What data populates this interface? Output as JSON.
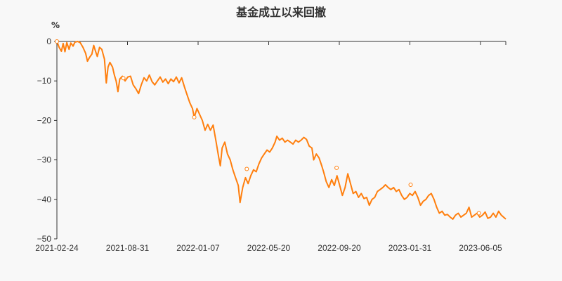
{
  "chart_data": {
    "type": "line",
    "title": "基金成立以来回撤",
    "ylabel": "%",
    "xlabel": "",
    "ylim": [
      -50,
      0
    ],
    "yticks": [
      0,
      -10,
      -20,
      -30,
      -40,
      -50
    ],
    "ytick_labels": [
      "0",
      "−10",
      "−20",
      "−30",
      "−40",
      "−50"
    ],
    "xtick_labels": [
      "2021-02-24",
      "2021-08-31",
      "2022-01-07",
      "2022-05-20",
      "2022-09-20",
      "2023-01-31",
      "2023-06-05"
    ],
    "grid": false,
    "legend": null,
    "line_color": "#ff7f0e",
    "series": [
      {
        "name": "回撤",
        "points": [
          [
            0.0,
            0.0
          ],
          [
            0.005,
            -1.5
          ],
          [
            0.01,
            -2.5
          ],
          [
            0.014,
            -0.5
          ],
          [
            0.018,
            -2.6
          ],
          [
            0.022,
            -0.3
          ],
          [
            0.027,
            -2.0
          ],
          [
            0.031,
            -0.4
          ],
          [
            0.036,
            -1.2
          ],
          [
            0.04,
            -0.2
          ],
          [
            0.046,
            0.0
          ],
          [
            0.052,
            -0.3
          ],
          [
            0.058,
            -1.5
          ],
          [
            0.064,
            -3.0
          ],
          [
            0.068,
            -5.0
          ],
          [
            0.073,
            -4.0
          ],
          [
            0.078,
            -3.2
          ],
          [
            0.082,
            -1.0
          ],
          [
            0.086,
            -2.5
          ],
          [
            0.09,
            -3.8
          ],
          [
            0.095,
            -1.5
          ],
          [
            0.1,
            -2.0
          ],
          [
            0.106,
            -4.5
          ],
          [
            0.11,
            -10.5
          ],
          [
            0.114,
            -6.5
          ],
          [
            0.118,
            -5.3
          ],
          [
            0.124,
            -6.5
          ],
          [
            0.128,
            -8.5
          ],
          [
            0.132,
            -10.0
          ],
          [
            0.136,
            -12.7
          ],
          [
            0.14,
            -9.5
          ],
          [
            0.146,
            -8.8
          ],
          [
            0.152,
            -10.0
          ],
          [
            0.158,
            -9.0
          ],
          [
            0.164,
            -8.8
          ],
          [
            0.17,
            -11.0
          ],
          [
            0.176,
            -12.0
          ],
          [
            0.182,
            -13.2
          ],
          [
            0.188,
            -11.0
          ],
          [
            0.194,
            -9.2
          ],
          [
            0.2,
            -10.0
          ],
          [
            0.206,
            -8.5
          ],
          [
            0.212,
            -10.2
          ],
          [
            0.218,
            -11.0
          ],
          [
            0.224,
            -10.0
          ],
          [
            0.23,
            -9.0
          ],
          [
            0.236,
            -10.3
          ],
          [
            0.242,
            -9.5
          ],
          [
            0.248,
            -10.7
          ],
          [
            0.254,
            -9.5
          ],
          [
            0.26,
            -10.2
          ],
          [
            0.266,
            -9.0
          ],
          [
            0.272,
            -10.5
          ],
          [
            0.278,
            -9.2
          ],
          [
            0.284,
            -11.5
          ],
          [
            0.29,
            -13.5
          ],
          [
            0.296,
            -15.5
          ],
          [
            0.302,
            -17.0
          ],
          [
            0.306,
            -19.2
          ],
          [
            0.312,
            -17.0
          ],
          [
            0.318,
            -18.5
          ],
          [
            0.324,
            -20.0
          ],
          [
            0.33,
            -22.5
          ],
          [
            0.336,
            -21.0
          ],
          [
            0.342,
            -22.5
          ],
          [
            0.348,
            -21.2
          ],
          [
            0.354,
            -25.0
          ],
          [
            0.36,
            -29.0
          ],
          [
            0.364,
            -31.5
          ],
          [
            0.368,
            -27.0
          ],
          [
            0.374,
            -25.5
          ],
          [
            0.38,
            -28.5
          ],
          [
            0.386,
            -30.0
          ],
          [
            0.392,
            -32.5
          ],
          [
            0.398,
            -34.5
          ],
          [
            0.404,
            -36.5
          ],
          [
            0.408,
            -40.8
          ],
          [
            0.414,
            -37.0
          ],
          [
            0.42,
            -34.5
          ],
          [
            0.426,
            -36.0
          ],
          [
            0.432,
            -34.0
          ],
          [
            0.438,
            -32.5
          ],
          [
            0.444,
            -33.0
          ],
          [
            0.45,
            -31.0
          ],
          [
            0.456,
            -29.5
          ],
          [
            0.462,
            -28.5
          ],
          [
            0.468,
            -27.5
          ],
          [
            0.474,
            -28.0
          ],
          [
            0.48,
            -27.0
          ],
          [
            0.486,
            -25.5
          ],
          [
            0.49,
            -24.0
          ],
          [
            0.496,
            -25.0
          ],
          [
            0.502,
            -24.5
          ],
          [
            0.508,
            -25.5
          ],
          [
            0.514,
            -25.0
          ],
          [
            0.52,
            -25.5
          ],
          [
            0.526,
            -26.0
          ],
          [
            0.532,
            -25.0
          ],
          [
            0.538,
            -25.5
          ],
          [
            0.544,
            -25.0
          ],
          [
            0.55,
            -24.3
          ],
          [
            0.556,
            -24.8
          ],
          [
            0.562,
            -26.5
          ],
          [
            0.568,
            -27.0
          ],
          [
            0.572,
            -30.0
          ],
          [
            0.578,
            -28.5
          ],
          [
            0.584,
            -29.5
          ],
          [
            0.59,
            -31.5
          ],
          [
            0.594,
            -33.0
          ],
          [
            0.6,
            -35.5
          ],
          [
            0.606,
            -37.0
          ],
          [
            0.612,
            -35.0
          ],
          [
            0.618,
            -36.5
          ],
          [
            0.624,
            -34.0
          ],
          [
            0.63,
            -36.5
          ],
          [
            0.636,
            -39.0
          ],
          [
            0.642,
            -37.0
          ],
          [
            0.648,
            -33.5
          ],
          [
            0.654,
            -36.0
          ],
          [
            0.66,
            -38.5
          ],
          [
            0.666,
            -38.0
          ],
          [
            0.672,
            -39.5
          ],
          [
            0.678,
            -38.5
          ],
          [
            0.684,
            -39.8
          ],
          [
            0.69,
            -39.5
          ],
          [
            0.696,
            -41.5
          ],
          [
            0.702,
            -40.0
          ],
          [
            0.708,
            -39.5
          ],
          [
            0.714,
            -38.0
          ],
          [
            0.72,
            -37.5
          ],
          [
            0.726,
            -37.0
          ],
          [
            0.732,
            -36.3
          ],
          [
            0.738,
            -37.0
          ],
          [
            0.744,
            -37.5
          ],
          [
            0.75,
            -37.0
          ],
          [
            0.756,
            -38.0
          ],
          [
            0.762,
            -37.5
          ],
          [
            0.768,
            -39.0
          ],
          [
            0.774,
            -40.0
          ],
          [
            0.78,
            -39.5
          ],
          [
            0.786,
            -38.5
          ],
          [
            0.792,
            -39.0
          ],
          [
            0.798,
            -38.0
          ],
          [
            0.804,
            -39.5
          ],
          [
            0.81,
            -41.5
          ],
          [
            0.816,
            -40.5
          ],
          [
            0.822,
            -40.0
          ],
          [
            0.828,
            -39.0
          ],
          [
            0.834,
            -38.5
          ],
          [
            0.84,
            -40.0
          ],
          [
            0.846,
            -42.0
          ],
          [
            0.852,
            -43.5
          ],
          [
            0.858,
            -43.0
          ],
          [
            0.864,
            -44.0
          ],
          [
            0.87,
            -43.8
          ],
          [
            0.876,
            -44.5
          ],
          [
            0.882,
            -45.0
          ],
          [
            0.888,
            -44.0
          ],
          [
            0.894,
            -43.5
          ],
          [
            0.9,
            -44.5
          ],
          [
            0.906,
            -44.0
          ],
          [
            0.912,
            -43.5
          ],
          [
            0.918,
            -42.0
          ],
          [
            0.924,
            -44.5
          ],
          [
            0.93,
            -44.0
          ],
          [
            0.936,
            -43.5
          ],
          [
            0.942,
            -44.5
          ],
          [
            0.948,
            -44.0
          ],
          [
            0.954,
            -43.2
          ],
          [
            0.96,
            -44.8
          ],
          [
            0.966,
            -44.5
          ],
          [
            0.972,
            -43.5
          ],
          [
            0.978,
            -44.5
          ],
          [
            0.984,
            -43.0
          ],
          [
            0.99,
            -44.0
          ],
          [
            1.0,
            -45.0
          ]
        ]
      }
    ],
    "markers": [
      {
        "x": 0.0,
        "y": 0.0
      },
      {
        "x": 0.148,
        "y": -9.3
      },
      {
        "x": 0.306,
        "y": -19.2
      },
      {
        "x": 0.423,
        "y": -32.3
      },
      {
        "x": 0.623,
        "y": -32.0
      },
      {
        "x": 0.788,
        "y": -36.3
      },
      {
        "x": 0.94,
        "y": -43.5
      }
    ]
  }
}
